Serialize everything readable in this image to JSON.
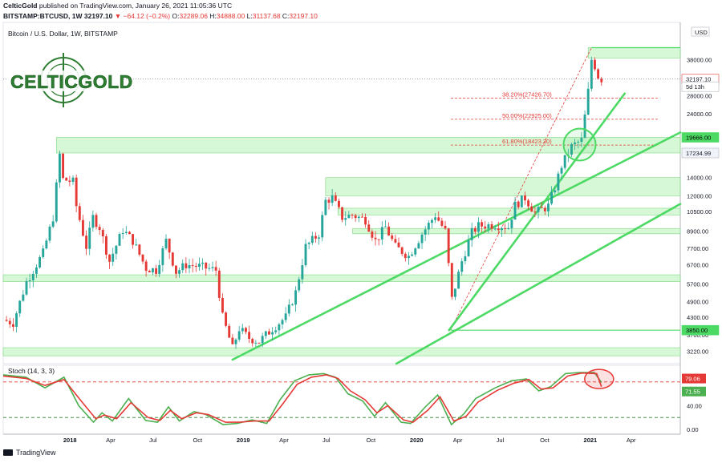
{
  "header": {
    "publisher": "CelticGold",
    "published_text": "published on TradingView.com, January 26, 2021 11:05:36 UTC",
    "symbol": "BITSTAMP:BTCUSD, 1W",
    "last_price": "32197.10",
    "change": "▼ −64.12 (−0.2%)",
    "o_label": "O:",
    "o_value": "32289.06",
    "h_label": "H:",
    "h_value": "34888.00",
    "l_label": "L:",
    "l_value": "31137.68",
    "c_label": "C:",
    "c_value": "32197.10"
  },
  "logo": {
    "text": "CELTICGOLD"
  },
  "footer": {
    "brand": "TradingView"
  },
  "colors": {
    "up": "#26a69a",
    "down": "#e53935",
    "trendline": "#4cd964",
    "zone": "#c8f5c8",
    "fib": "#e53935",
    "stoch_k": "#4caf50",
    "stoch_d": "#e53935"
  },
  "chart_data": [
    {
      "type": "candlestick",
      "title": "Bitcoin / U.S. Dollar, 1W, BITSTAMP",
      "y_scale": "log",
      "ylim": [
        2900,
        52000
      ],
      "yaxis_unit": "USD",
      "ytick_labels": [
        "38000.00",
        "28000.00",
        "24000.00",
        "19666.00",
        "17234.99",
        "14000.00",
        "12000.00",
        "10500.00",
        "8900.00",
        "7700.00",
        "6700.00",
        "5700.00",
        "4900.00",
        "4300.00",
        "3850.00",
        "3700.00",
        "3220.00"
      ],
      "ytick_values": [
        38000,
        28000,
        24000,
        19666,
        17234.99,
        14000,
        12000,
        10500,
        8900,
        7700,
        6700,
        5700,
        4900,
        4300,
        3850,
        3700,
        3220
      ],
      "price_labels": [
        {
          "text": "32197.10",
          "value": 32197.1,
          "style": "last"
        },
        {
          "text": "5d 13h",
          "value": 30200,
          "style": "countdown"
        },
        {
          "text": "19666.00",
          "value": 19666,
          "style": "level"
        },
        {
          "text": "17234.99",
          "value": 17234.99,
          "style": "level-light"
        },
        {
          "text": "3850.00",
          "value": 3850,
          "style": "level"
        }
      ],
      "xtick_labels": [
        "2018",
        "Apr",
        "Jul",
        "Oct",
        "2019",
        "Apr",
        "Jul",
        "Oct",
        "2020",
        "Apr",
        "Jul",
        "Oct",
        "2021",
        "Apr"
      ],
      "xtick_dates": [
        "2018-01-01",
        "2018-04-01",
        "2018-07-01",
        "2018-10-01",
        "2019-01-01",
        "2019-04-01",
        "2019-07-01",
        "2019-10-01",
        "2020-01-01",
        "2020-04-01",
        "2020-07-01",
        "2020-10-01",
        "2021-01-01",
        "2021-04-01"
      ],
      "xlim": [
        "2017-08-14",
        "2021-07-10"
      ],
      "price_path": [
        [
          "2017-08-14",
          4200
        ],
        [
          "2017-09-04",
          4100
        ],
        [
          "2017-10-02",
          5800
        ],
        [
          "2017-11-06",
          7400
        ],
        [
          "2017-11-27",
          10000
        ],
        [
          "2017-12-11",
          17000
        ],
        [
          "2017-12-18",
          13800
        ],
        [
          "2018-01-08",
          13500
        ],
        [
          "2018-01-15",
          11000
        ],
        [
          "2018-02-05",
          7800
        ],
        [
          "2018-02-19",
          10000
        ],
        [
          "2018-03-05",
          9200
        ],
        [
          "2018-03-26",
          6900
        ],
        [
          "2018-04-23",
          9000
        ],
        [
          "2018-05-14",
          8200
        ],
        [
          "2018-06-11",
          6500
        ],
        [
          "2018-07-02",
          6400
        ],
        [
          "2018-07-23",
          8200
        ],
        [
          "2018-08-13",
          6300
        ],
        [
          "2018-09-03",
          6700
        ],
        [
          "2018-10-01",
          6600
        ],
        [
          "2018-11-05",
          6400
        ],
        [
          "2018-11-19",
          4300
        ],
        [
          "2018-12-10",
          3300
        ],
        [
          "2018-12-24",
          3900
        ],
        [
          "2019-01-14",
          3600
        ],
        [
          "2019-02-04",
          3500
        ],
        [
          "2019-03-04",
          3900
        ],
        [
          "2019-04-01",
          4300
        ],
        [
          "2019-04-22",
          5300
        ],
        [
          "2019-05-13",
          7800
        ],
        [
          "2019-06-10",
          8700
        ],
        [
          "2019-06-24",
          11500
        ],
        [
          "2019-07-08",
          11800
        ],
        [
          "2019-07-29",
          10000
        ],
        [
          "2019-08-19",
          10200
        ],
        [
          "2019-09-16",
          9800
        ],
        [
          "2019-10-07",
          8200
        ],
        [
          "2019-10-28",
          9200
        ],
        [
          "2019-11-18",
          7800
        ],
        [
          "2019-12-16",
          7200
        ],
        [
          "2020-01-13",
          8700
        ],
        [
          "2020-02-10",
          10200
        ],
        [
          "2020-03-02",
          8900
        ],
        [
          "2020-03-16",
          5000
        ],
        [
          "2020-04-06",
          6900
        ],
        [
          "2020-04-27",
          8800
        ],
        [
          "2020-05-11",
          9300
        ],
        [
          "2020-06-15",
          9400
        ],
        [
          "2020-07-13",
          9200
        ],
        [
          "2020-07-27",
          11100
        ],
        [
          "2020-08-17",
          11800
        ],
        [
          "2020-09-07",
          10400
        ],
        [
          "2020-10-05",
          11000
        ],
        [
          "2020-10-19",
          12900
        ],
        [
          "2020-11-02",
          15500
        ],
        [
          "2020-11-23",
          18200
        ],
        [
          "2020-12-14",
          19200
        ],
        [
          "2020-12-21",
          23500
        ],
        [
          "2020-12-28",
          29000
        ],
        [
          "2021-01-04",
          38000
        ],
        [
          "2021-01-11",
          36000
        ],
        [
          "2021-01-18",
          33000
        ],
        [
          "2021-01-25",
          32197
        ]
      ],
      "zones": [
        {
          "from": 17234.99,
          "to": 19666,
          "start": "2017-12-04"
        },
        {
          "from": 12000,
          "to": 14000,
          "start": "2019-06-24"
        },
        {
          "from": 10200,
          "to": 10800,
          "start": "2019-07-20"
        },
        {
          "from": 8700,
          "to": 9100,
          "start": "2019-08-20"
        },
        {
          "from": 5800,
          "to": 6150,
          "start": "2017-08-14"
        },
        {
          "from": 3100,
          "to": 3320,
          "start": "2017-08-14"
        },
        {
          "from": 38500,
          "to": 42000,
          "start": "2020-12-28"
        }
      ],
      "fib_levels": [
        {
          "label": "38.20%(27426.70)",
          "value": 27426.7
        },
        {
          "label": "50.00%(22925.00)",
          "value": 22925
        },
        {
          "label": "61.80%(18423.30)",
          "value": 18423.3
        }
      ],
      "trendlines": [
        {
          "x1": "2018-12-10",
          "y1": 3000,
          "x2": "2021-07-10",
          "y2": 20500
        },
        {
          "x1": "2020-03-10",
          "y1": 3850,
          "x2": "2021-03-15",
          "y2": 28500
        },
        {
          "x1": "2019-11-20",
          "y1": 2900,
          "x2": "2021-07-10",
          "y2": 11200
        }
      ],
      "highlights": [
        {
          "type": "circle",
          "date": "2020-12-10",
          "value": 18500
        },
        {
          "type": "horizontal",
          "value": 3850,
          "start": "2020-03-13"
        },
        {
          "type": "horizontal",
          "value": 42000,
          "start": "2021-01-04"
        }
      ]
    },
    {
      "type": "line",
      "title": "Stoch (14, 3, 3)",
      "ylim": [
        0,
        100
      ],
      "ytick_labels": [
        "40.00",
        "0.00"
      ],
      "ytick_values": [
        40,
        0
      ],
      "value_labels": [
        {
          "text": "79.06",
          "series": "%K"
        },
        {
          "text": "71.55",
          "series": "%D"
        }
      ],
      "hlines": [
        80,
        20
      ],
      "series": [
        {
          "name": "%K",
          "values_by_date": [
            [
              "2017-08-14",
              92
            ],
            [
              "2017-10-01",
              88
            ],
            [
              "2017-11-10",
              70
            ],
            [
              "2017-12-20",
              88
            ],
            [
              "2018-01-20",
              40
            ],
            [
              "2018-02-20",
              12
            ],
            [
              "2018-03-10",
              28
            ],
            [
              "2018-04-01",
              14
            ],
            [
              "2018-05-05",
              52
            ],
            [
              "2018-06-10",
              15
            ],
            [
              "2018-07-05",
              12
            ],
            [
              "2018-07-28",
              38
            ],
            [
              "2018-08-20",
              14
            ],
            [
              "2018-09-20",
              30
            ],
            [
              "2018-10-15",
              25
            ],
            [
              "2018-11-20",
              8
            ],
            [
              "2018-12-20",
              10
            ],
            [
              "2019-01-20",
              16
            ],
            [
              "2019-02-20",
              10
            ],
            [
              "2019-03-20",
              50
            ],
            [
              "2019-04-20",
              82
            ],
            [
              "2019-05-20",
              92
            ],
            [
              "2019-06-20",
              94
            ],
            [
              "2019-07-15",
              88
            ],
            [
              "2019-08-10",
              60
            ],
            [
              "2019-09-10",
              48
            ],
            [
              "2019-10-05",
              22
            ],
            [
              "2019-10-28",
              45
            ],
            [
              "2019-11-30",
              12
            ],
            [
              "2019-12-20",
              10
            ],
            [
              "2020-01-20",
              38
            ],
            [
              "2020-02-15",
              58
            ],
            [
              "2020-03-15",
              8
            ],
            [
              "2020-04-10",
              26
            ],
            [
              "2020-05-05",
              52
            ],
            [
              "2020-06-15",
              70
            ],
            [
              "2020-07-20",
              82
            ],
            [
              "2020-08-20",
              85
            ],
            [
              "2020-09-15",
              65
            ],
            [
              "2020-10-10",
              72
            ],
            [
              "2020-11-10",
              94
            ],
            [
              "2020-12-10",
              96
            ],
            [
              "2021-01-10",
              96
            ],
            [
              "2021-01-25",
              79
            ]
          ]
        },
        {
          "name": "%D",
          "values_by_date": [
            [
              "2017-08-14",
              90
            ],
            [
              "2017-10-01",
              86
            ],
            [
              "2017-11-10",
              74
            ],
            [
              "2017-12-20",
              84
            ],
            [
              "2018-01-25",
              48
            ],
            [
              "2018-02-25",
              18
            ],
            [
              "2018-03-15",
              24
            ],
            [
              "2018-04-10",
              18
            ],
            [
              "2018-05-10",
              45
            ],
            [
              "2018-06-15",
              20
            ],
            [
              "2018-07-10",
              15
            ],
            [
              "2018-08-01",
              32
            ],
            [
              "2018-08-25",
              18
            ],
            [
              "2018-09-25",
              28
            ],
            [
              "2018-10-20",
              25
            ],
            [
              "2018-11-25",
              12
            ],
            [
              "2018-12-25",
              12
            ],
            [
              "2019-01-25",
              14
            ],
            [
              "2019-02-25",
              14
            ],
            [
              "2019-03-25",
              42
            ],
            [
              "2019-04-25",
              76
            ],
            [
              "2019-05-25",
              88
            ],
            [
              "2019-06-25",
              92
            ],
            [
              "2019-07-20",
              86
            ],
            [
              "2019-08-15",
              65
            ],
            [
              "2019-09-15",
              50
            ],
            [
              "2019-10-10",
              28
            ],
            [
              "2019-11-02",
              40
            ],
            [
              "2019-12-05",
              16
            ],
            [
              "2019-12-25",
              12
            ],
            [
              "2020-01-25",
              32
            ],
            [
              "2020-02-20",
              55
            ],
            [
              "2020-03-20",
              14
            ],
            [
              "2020-04-15",
              22
            ],
            [
              "2020-05-10",
              46
            ],
            [
              "2020-06-20",
              66
            ],
            [
              "2020-07-25",
              78
            ],
            [
              "2020-08-25",
              84
            ],
            [
              "2020-09-20",
              68
            ],
            [
              "2020-10-15",
              70
            ],
            [
              "2020-11-15",
              90
            ],
            [
              "2020-12-15",
              95
            ],
            [
              "2021-01-15",
              94
            ],
            [
              "2021-01-25",
              72
            ]
          ]
        }
      ]
    }
  ]
}
